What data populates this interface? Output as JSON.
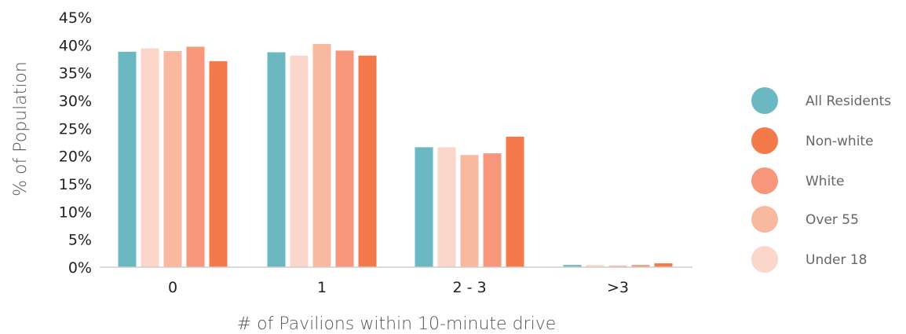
{
  "chart_data": {
    "type": "bar",
    "categories": [
      "0",
      "1",
      "2 - 3",
      ">3"
    ],
    "xlabel": "# of Pavilions within 10-minute drive",
    "ylabel": "% of Population",
    "ylim": [
      0,
      45
    ],
    "yticks": [
      "0%",
      "5%",
      "10%",
      "15%",
      "20%",
      "25%",
      "30%",
      "35%",
      "40%",
      "45%"
    ],
    "ytick_values": [
      0,
      5,
      10,
      15,
      20,
      25,
      30,
      35,
      40,
      45
    ],
    "grid": false,
    "legend_position": "right",
    "bar_order": [
      "All Residents",
      "Under 18",
      "Over 55",
      "White",
      "Non-white"
    ],
    "legend_order": [
      "All Residents",
      "Non-white",
      "White",
      "Over 55",
      "Under 18"
    ],
    "series": [
      {
        "name": "All Residents",
        "color": "#6BB8C3",
        "values": [
          38.8,
          38.7,
          21.6,
          0.4
        ]
      },
      {
        "name": "Under 18",
        "color": "#FCD6CA",
        "values": [
          39.4,
          38.1,
          21.6,
          0.4
        ]
      },
      {
        "name": "Over 55",
        "color": "#F9B8A0",
        "values": [
          38.9,
          40.2,
          20.2,
          0.3
        ]
      },
      {
        "name": "White",
        "color": "#F7967A",
        "values": [
          39.7,
          39.0,
          20.5,
          0.4
        ]
      },
      {
        "name": "Non-white",
        "color": "#F47A4C",
        "values": [
          37.1,
          38.1,
          23.5,
          0.7
        ]
      }
    ]
  }
}
